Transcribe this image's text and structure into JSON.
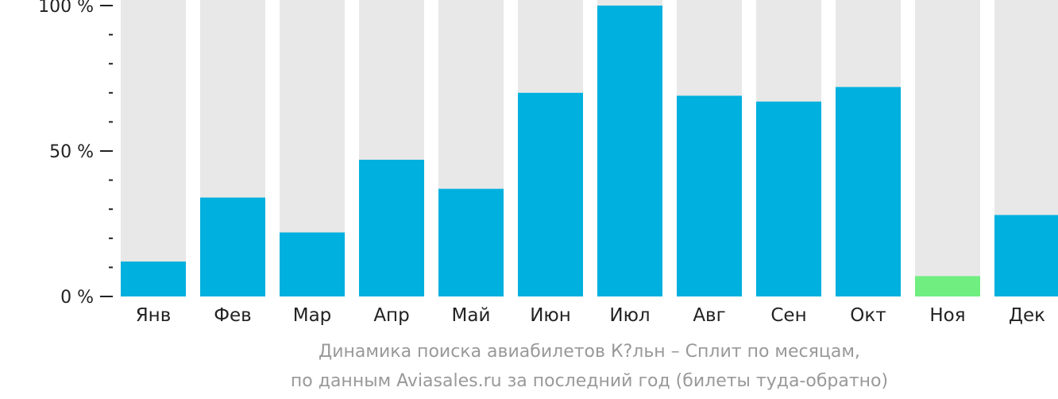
{
  "chart_data": {
    "type": "bar",
    "categories": [
      "Янв",
      "Фев",
      "Мар",
      "Апр",
      "Май",
      "Июн",
      "Июл",
      "Авг",
      "Сен",
      "Окт",
      "Ноя",
      "Дек"
    ],
    "values": [
      12,
      34,
      22,
      47,
      37,
      70,
      100,
      69,
      67,
      72,
      7,
      28
    ],
    "ylim": [
      0,
      100
    ],
    "yticks": [
      "0 %",
      "50 %",
      "100 %"
    ],
    "colors": {
      "bar": "#00b0de",
      "highlight": "#70ee80",
      "background_bar": "#e8e8e8",
      "axis": "#222222",
      "caption": "#999999"
    },
    "highlight_category": "Ноя"
  },
  "caption": {
    "line1": "Динамика поиска авиабилетов К?льн – Сплит по месяцам,",
    "line2": "по данным Aviasales.ru за последний год (билеты туда-обратно)"
  }
}
